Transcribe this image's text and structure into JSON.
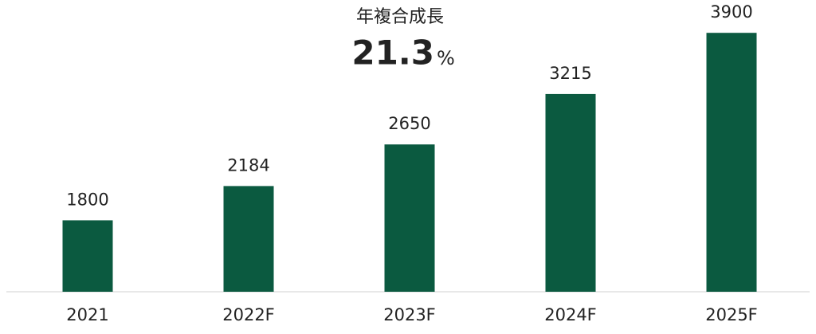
{
  "chart_data": {
    "type": "bar",
    "categories": [
      "2021",
      "2022F",
      "2023F",
      "2024F",
      "2025F"
    ],
    "values": [
      1800,
      2184,
      2650,
      3215,
      3900
    ],
    "color": "#0b5a40",
    "ylim": [
      1000,
      4000
    ],
    "annotation": {
      "label": "年複合成長",
      "value": 21.3,
      "unit": "%",
      "color": "#e8141b"
    }
  }
}
